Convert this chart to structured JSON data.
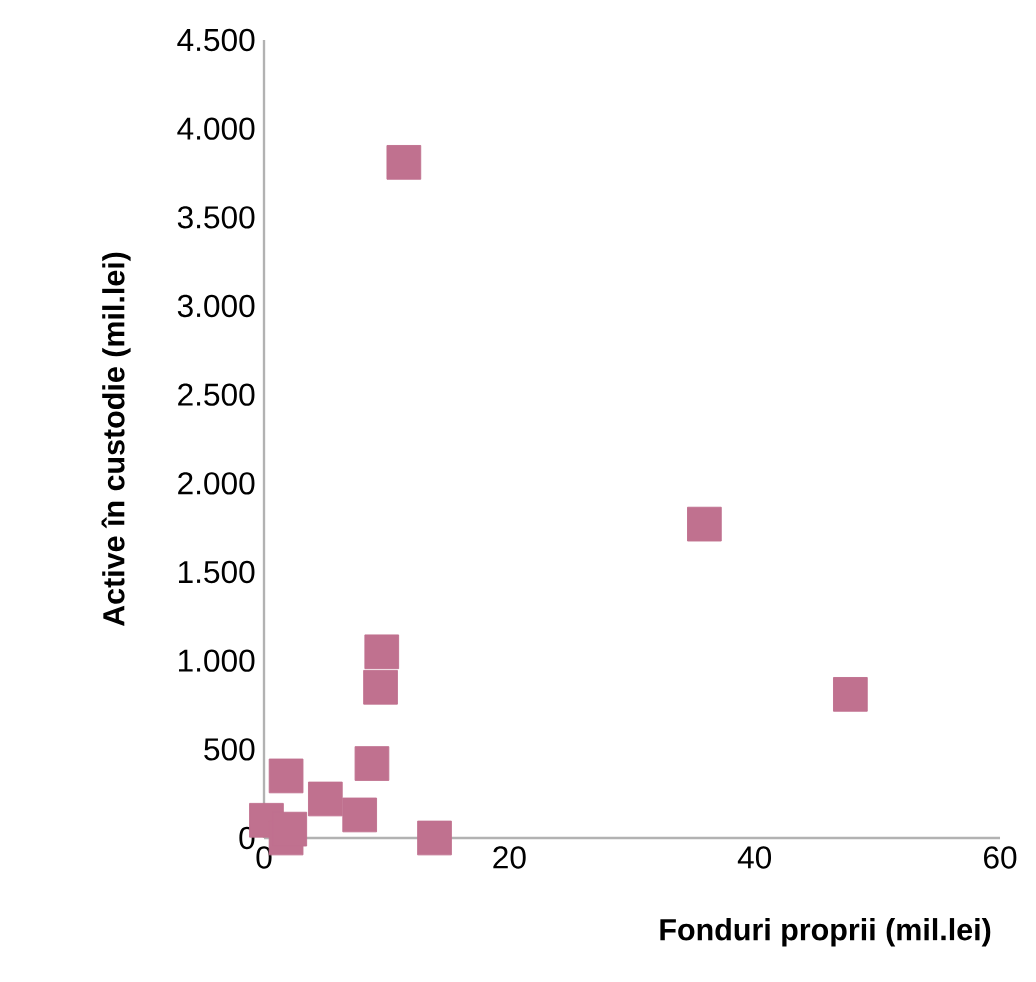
{
  "chart_data": {
    "type": "scatter",
    "xlabel": "Fonduri proprii (mil.lei)",
    "ylabel": "Active în custodie (mil.lei)",
    "marker": "square",
    "grid": false,
    "xlim": [
      0,
      60
    ],
    "xticks": [
      0,
      20,
      40,
      60
    ],
    "ylim": [
      0,
      4500
    ],
    "yticks": [
      0,
      {
        "value": 500,
        "label": "500"
      },
      {
        "value": 1000,
        "label": "1.000"
      },
      {
        "value": 1500,
        "label": "1.500"
      },
      {
        "value": 2000,
        "label": "2.000"
      },
      {
        "value": 2500,
        "label": "2.500"
      },
      {
        "value": 3000,
        "label": "3.000"
      },
      {
        "value": 3500,
        "label": "3.500"
      },
      {
        "value": 4000,
        "label": "4.000"
      },
      {
        "value": 4500,
        "label": "4.500"
      }
    ],
    "series": [
      {
        "color": "#c0718f",
        "x": [
          11.4,
          35.9,
          47.8,
          9.6,
          9.5,
          8.8,
          13.9,
          1.8,
          1.6,
          0.2,
          1.8,
          5,
          7.8,
          2.1
        ],
        "values": [
          3810,
          1770,
          810,
          1050,
          850,
          420,
          0,
          350,
          null,
          100,
          0,
          220,
          130,
          50
        ]
      }
    ]
  }
}
